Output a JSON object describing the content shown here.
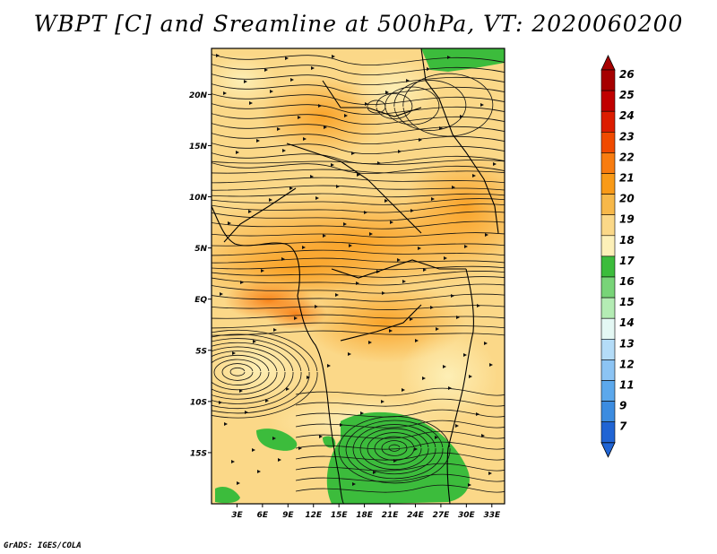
{
  "title": "WBPT [C] and Sreamline at 500hPa, VT: 2020060200",
  "footer": "GrADS: IGES/COLA",
  "map": {
    "lat_labels": [
      "20N",
      "15N",
      "10N",
      "5N",
      "EQ",
      "5S",
      "10S",
      "15S"
    ],
    "lat_values": [
      20,
      15,
      10,
      5,
      0,
      -5,
      -10,
      -15
    ],
    "lon_labels": [
      "3E",
      "6E",
      "9E",
      "12E",
      "15E",
      "18E",
      "21E",
      "24E",
      "27E",
      "30E",
      "33E"
    ],
    "lon_values": [
      3,
      6,
      9,
      12,
      15,
      18,
      21,
      24,
      27,
      30,
      33
    ],
    "lon_range": [
      0,
      34.5
    ],
    "lat_range": [
      -20,
      24.5
    ]
  },
  "colorbar": {
    "labels": [
      "26",
      "25",
      "24",
      "23",
      "22",
      "21",
      "20",
      "19",
      "18",
      "17",
      "16",
      "15",
      "14",
      "13",
      "12",
      "11",
      "9",
      "7"
    ],
    "colors": {
      "c26": "#a60000",
      "c25": "#c00000",
      "c24": "#dc1c00",
      "c23": "#f04a00",
      "c22": "#f87c10",
      "c21": "#f99a18",
      "c20": "#f7b84a",
      "c19": "#fbd888",
      "c18": "#fdf0b8",
      "c17": "#3cbc3c",
      "c16": "#78d478",
      "c15": "#b4ecb4",
      "c14": "#e4f8f4",
      "c13": "#b4dcf8",
      "c12": "#8cc4f4",
      "c11": "#5ca8ec",
      "c9": "#3c8ce0",
      "c7": "#2064d4"
    }
  }
}
